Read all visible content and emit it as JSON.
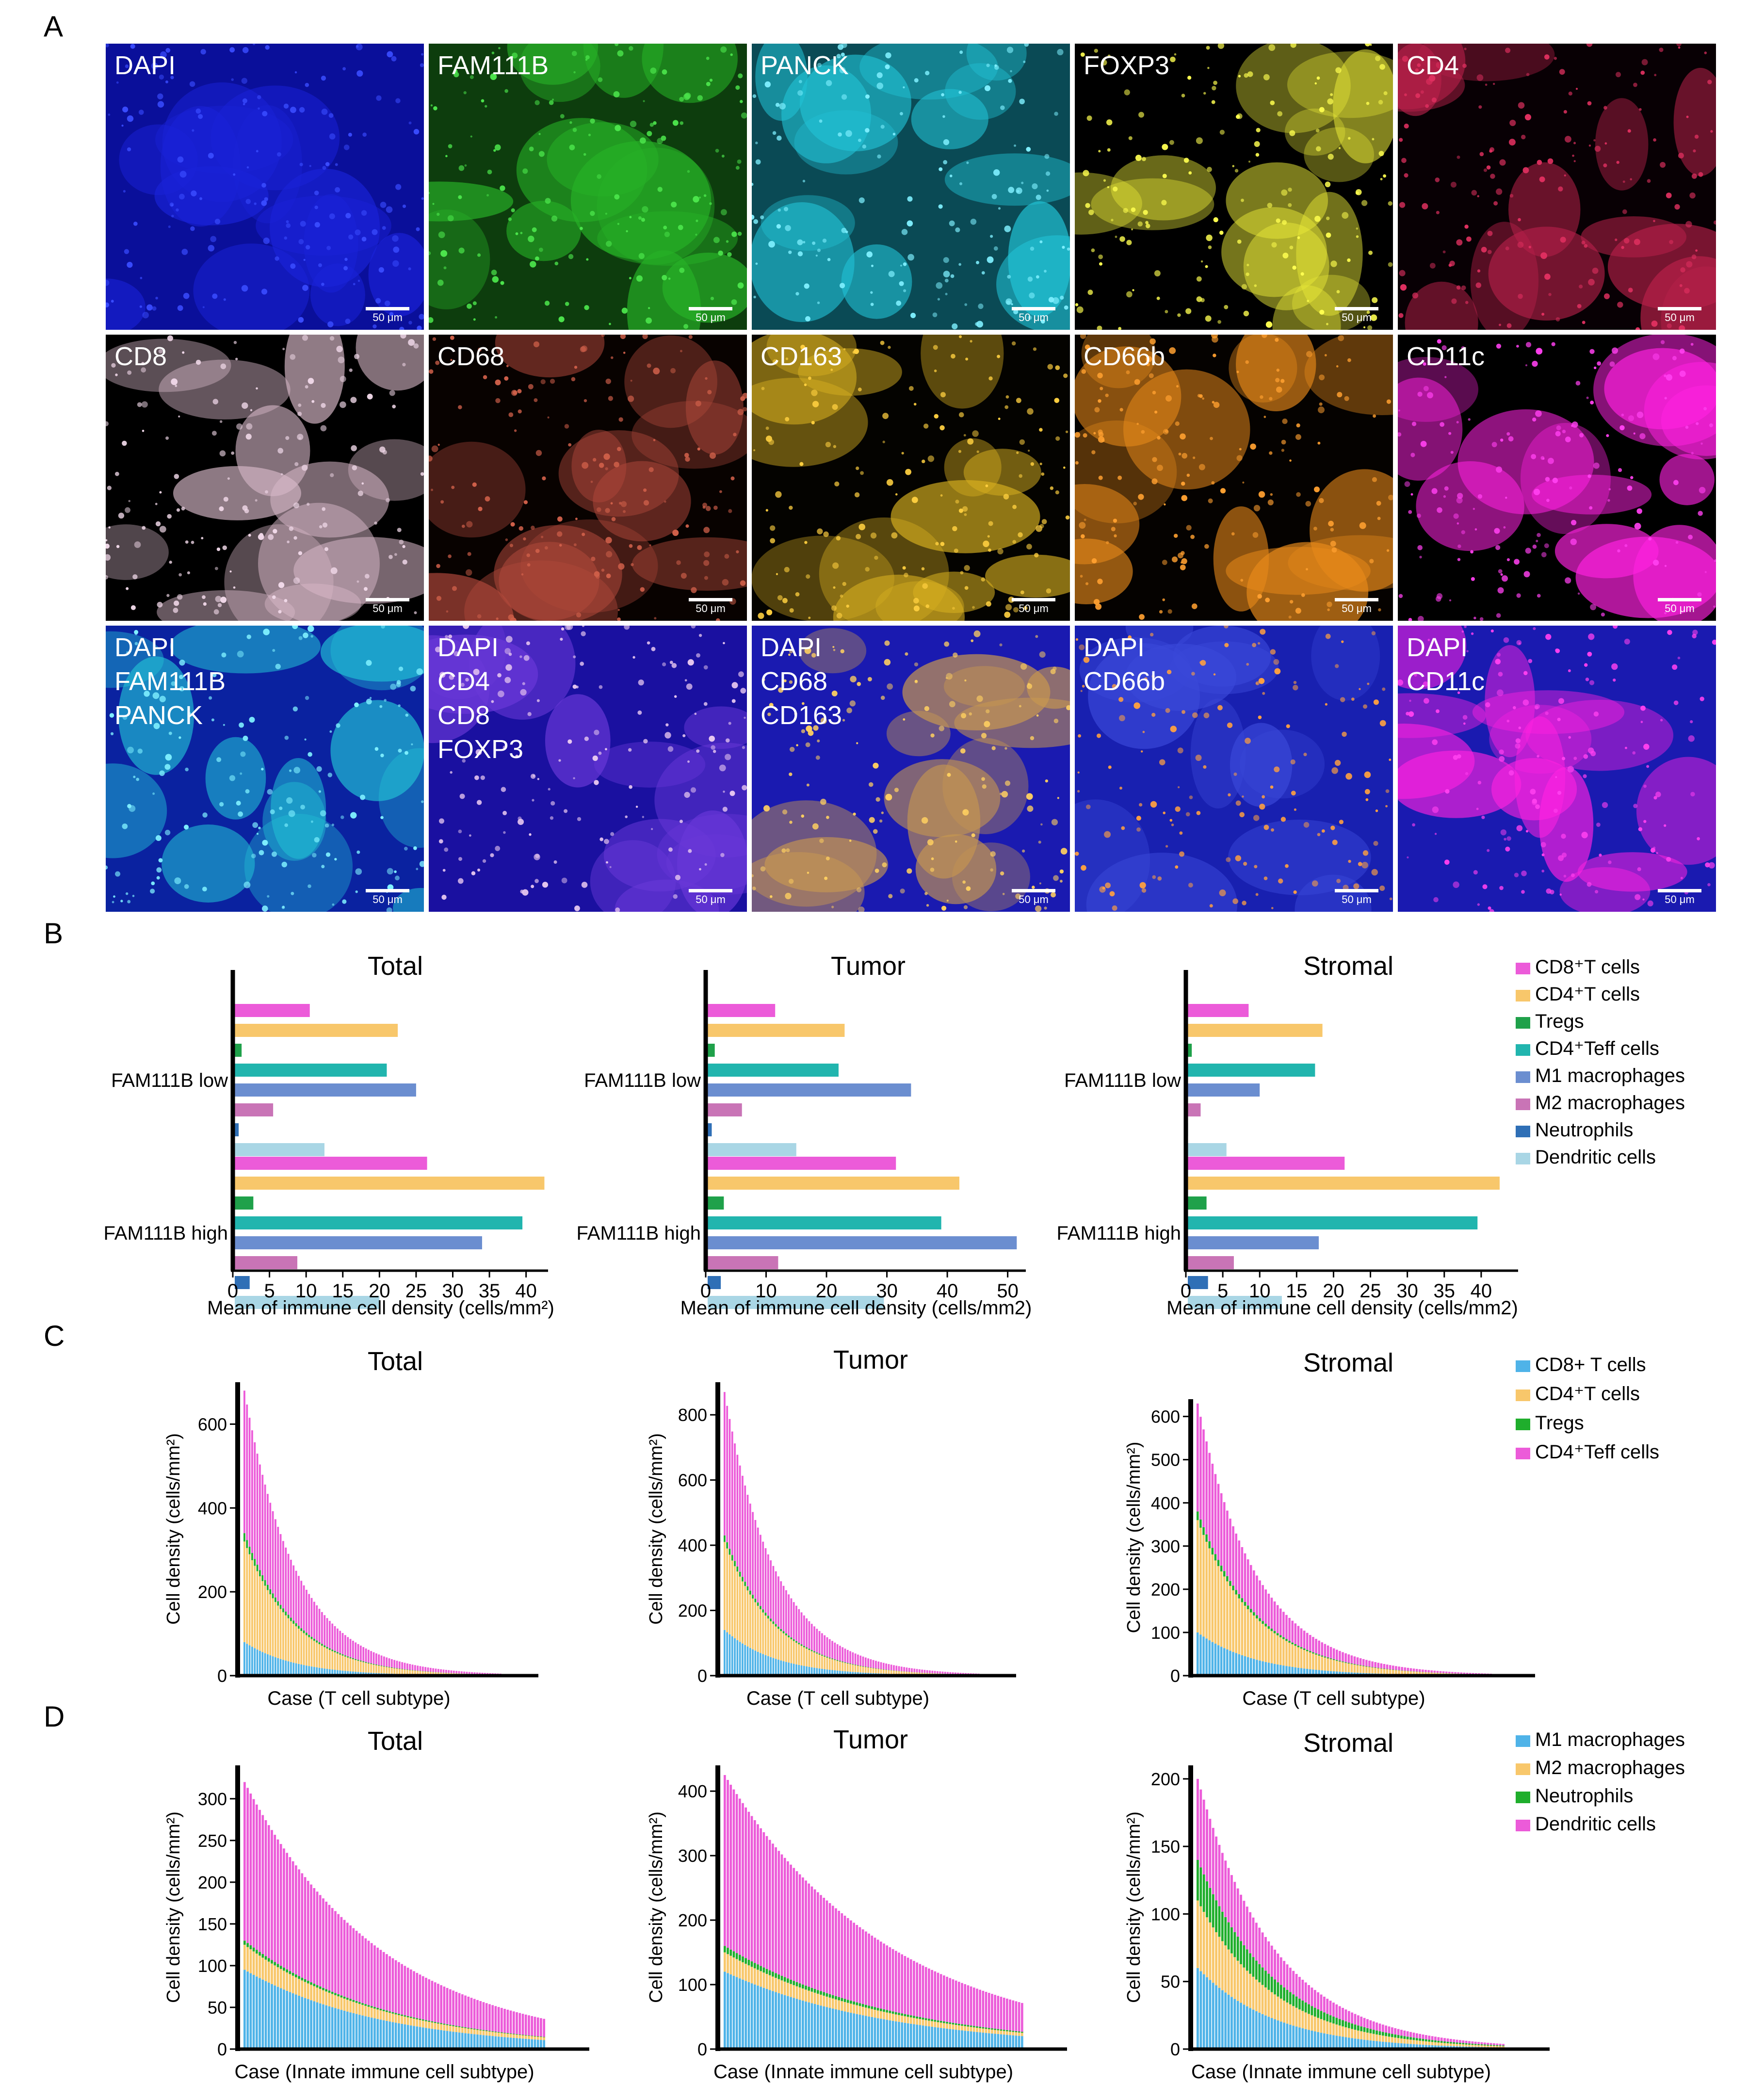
{
  "panel_labels": [
    "A",
    "B",
    "C",
    "D"
  ],
  "microscopy": {
    "scale_bar_label": "50 μm",
    "tiles": [
      {
        "label": "DAPI",
        "color": "#1a22d8",
        "dots": "#3a4cff",
        "bg": "#0a0f9a"
      },
      {
        "label": "FAM111B",
        "color": "#27b227",
        "dots": "#4ce64c",
        "bg": "#0d3d0d"
      },
      {
        "label": "PANCK",
        "color": "#22c3d6",
        "dots": "#7ff0ff",
        "bg": "#0a4a55"
      },
      {
        "label": "FOXP3",
        "color": "#e8e838",
        "dots": "#ffff50",
        "bg": "#000000"
      },
      {
        "label": "CD4",
        "color": "#b8204a",
        "dots": "#e03060",
        "bg": "#080004"
      },
      {
        "label": "CD8",
        "color": "#d8b8c8",
        "dots": "#f0d8e8",
        "bg": "#000000"
      },
      {
        "label": "CD68",
        "color": "#b0483a",
        "dots": "#d0604a",
        "bg": "#080200"
      },
      {
        "label": "CD163",
        "color": "#d8b020",
        "dots": "#ffd040",
        "bg": "#040300"
      },
      {
        "label": "CD66b",
        "color": "#e88a1a",
        "dots": "#ffa030",
        "bg": "#050200"
      },
      {
        "label": "CD11c",
        "color": "#ff22e0",
        "dots": "#ff40f0",
        "bg": "#000000"
      },
      {
        "label": "DAPI\nFAM111B\nPANCK",
        "color": "#22c3d6",
        "dots": "#7ff0ff",
        "bg": "#0a22a0"
      },
      {
        "label": "DAPI\nCD4\nCD8\nFOXP3",
        "color": "#6a38d8",
        "dots": "#e8c8f0",
        "bg": "#1a10a0"
      },
      {
        "label": "DAPI\nCD68\nCD163",
        "color": "#c89850",
        "dots": "#ffd060",
        "bg": "#1a1ab0"
      },
      {
        "label": "DAPI\nCD66b",
        "color": "#3a48d8",
        "dots": "#ffa040",
        "bg": "#1820b0"
      },
      {
        "label": "DAPI\nCD11c",
        "color": "#ff22e0",
        "dots": "#ff40f0",
        "bg": "#1a1ab0"
      }
    ]
  },
  "chart_data": [
    {
      "type": "bar",
      "panel": "B",
      "title": "Total",
      "orientation": "horizontal",
      "categories": [
        "FAM111B low",
        "FAM111B high"
      ],
      "xlabel": "Mean of immune cell density (cells/mm²)",
      "xlim": [
        0,
        43
      ],
      "xticks": [
        0,
        5,
        10,
        15,
        20,
        25,
        30,
        35,
        40
      ],
      "series": [
        {
          "name": "CD8⁺T cells",
          "color": "#ec5bd9",
          "values": [
            10.5,
            26.5
          ]
        },
        {
          "name": "CD4⁺T cells",
          "color": "#f8c76b",
          "values": [
            22.5,
            42.5
          ]
        },
        {
          "name": "Tregs",
          "color": "#1fa14a",
          "values": [
            1.2,
            2.8
          ]
        },
        {
          "name": "CD4⁺Teff cells",
          "color": "#21b5ae",
          "values": [
            21.0,
            39.5
          ]
        },
        {
          "name": "M1 macrophages",
          "color": "#6b8ed0",
          "values": [
            25.0,
            34.0
          ]
        },
        {
          "name": "M2 macrophages",
          "color": "#c974b6",
          "values": [
            5.5,
            8.8
          ]
        },
        {
          "name": "Neutrophils",
          "color": "#2f6fb6",
          "values": [
            0.8,
            2.3
          ]
        },
        {
          "name": "Dendritic cells",
          "color": "#a9d6e5",
          "values": [
            12.5,
            20.0
          ]
        }
      ]
    },
    {
      "type": "bar",
      "panel": "B",
      "title": "Tumor",
      "orientation": "horizontal",
      "categories": [
        "FAM111B low",
        "FAM111B high"
      ],
      "xlabel": "Mean of immune cell density (cells/mm2)",
      "xlim": [
        0,
        53
      ],
      "xticks": [
        0,
        10,
        20,
        30,
        40,
        50
      ],
      "series": [
        {
          "name": "CD8⁺T cells",
          "values": [
            11.5,
            31.5
          ]
        },
        {
          "name": "CD4⁺T cells",
          "values": [
            23.0,
            42.0
          ]
        },
        {
          "name": "Tregs",
          "values": [
            1.5,
            3.0
          ]
        },
        {
          "name": "CD4⁺Teff cells",
          "values": [
            22.0,
            39.0
          ]
        },
        {
          "name": "M1 macrophages",
          "values": [
            34.0,
            51.5
          ]
        },
        {
          "name": "M2 macrophages",
          "values": [
            6.0,
            12.0
          ]
        },
        {
          "name": "Neutrophils",
          "values": [
            1.0,
            2.5
          ]
        },
        {
          "name": "Dendritic cells",
          "values": [
            15.0,
            29.5
          ]
        }
      ]
    },
    {
      "type": "bar",
      "panel": "B",
      "title": "Stromal",
      "orientation": "horizontal",
      "categories": [
        "FAM111B low",
        "FAM111B high"
      ],
      "xlabel": "Mean of immune cell density (cells/mm2)",
      "xlim": [
        0,
        45
      ],
      "xticks": [
        0,
        5,
        10,
        15,
        20,
        25,
        30,
        35,
        40
      ],
      "series": [
        {
          "name": "CD8⁺T cells",
          "values": [
            8.5,
            21.5
          ]
        },
        {
          "name": "CD4⁺T cells",
          "values": [
            18.5,
            42.5
          ]
        },
        {
          "name": "Tregs",
          "values": [
            0.8,
            2.8
          ]
        },
        {
          "name": "CD4⁺Teff cells",
          "values": [
            17.5,
            39.5
          ]
        },
        {
          "name": "M1 macrophages",
          "values": [
            10.0,
            18.0
          ]
        },
        {
          "name": "M2 macrophages",
          "values": [
            2.0,
            6.5
          ]
        },
        {
          "name": "Neutrophils",
          "values": [
            0.3,
            3.0
          ]
        },
        {
          "name": "Dendritic cells",
          "values": [
            5.5,
            13.0
          ]
        }
      ]
    },
    {
      "type": "bar",
      "panel": "C",
      "title": "Total",
      "stacked": true,
      "n_cases": 100,
      "xlabel": "Case (T cell subtype)",
      "ylabel": "Cell density (cells/mm²)",
      "ylim": [
        0,
        700
      ],
      "yticks": [
        0,
        200,
        400,
        600
      ],
      "series": [
        {
          "name": "CD8+ T cells",
          "color": "#4fb3e8",
          "first_value": 80,
          "decay": 0.05
        },
        {
          "name": "CD4⁺T cells",
          "color": "#f8c76b",
          "first_value": 240,
          "decay": 0.05
        },
        {
          "name": "Tregs",
          "color": "#1fae2c",
          "first_value": 20,
          "decay": 0.05
        },
        {
          "name": "CD4⁺Teff cells",
          "color": "#ec5bd9",
          "first_value": 340,
          "decay": 0.05
        }
      ]
    },
    {
      "type": "bar",
      "panel": "C",
      "title": "Tumor",
      "stacked": true,
      "n_cases": 100,
      "xlabel": "Case (T cell subtype)",
      "ylabel": "Cell density (cells/mm²)",
      "ylim": [
        0,
        900
      ],
      "yticks": [
        0,
        200,
        400,
        600,
        800
      ],
      "series": [
        {
          "name": "CD8+ T cells",
          "first_value": 140,
          "decay": 0.05
        },
        {
          "name": "CD4⁺T cells",
          "first_value": 270,
          "decay": 0.05
        },
        {
          "name": "Tregs",
          "first_value": 20,
          "decay": 0.05
        },
        {
          "name": "CD4⁺Teff cells",
          "first_value": 440,
          "decay": 0.05
        }
      ]
    },
    {
      "type": "bar",
      "panel": "C",
      "title": "Stromal",
      "stacked": true,
      "n_cases": 100,
      "xlabel": "Case (T cell subtype)",
      "ylabel": "Cell density (cells/mm²)",
      "ylim": [
        0,
        640
      ],
      "yticks": [
        0,
        100,
        200,
        300,
        400,
        500,
        600
      ],
      "series": [
        {
          "name": "CD8+ T cells",
          "first_value": 100,
          "decay": 0.05
        },
        {
          "name": "CD4⁺T cells",
          "first_value": 260,
          "decay": 0.05
        },
        {
          "name": "Tregs",
          "first_value": 20,
          "decay": 0.05
        },
        {
          "name": "CD4⁺Teff cells",
          "first_value": 250,
          "decay": 0.05
        }
      ]
    },
    {
      "type": "bar",
      "panel": "D",
      "title": "Total",
      "stacked": true,
      "n_cases": 100,
      "xlabel": "Case (Innate immune cell subtype)",
      "ylabel": "Cell density (cells/mm²)",
      "ylim": [
        0,
        340
      ],
      "yticks": [
        0,
        50,
        100,
        150,
        200,
        250,
        300
      ],
      "series": [
        {
          "name": "M1 macrophages",
          "color": "#4fb3e8",
          "first_value": 95,
          "decay": 0.022
        },
        {
          "name": "M2 macrophages",
          "color": "#f8c76b",
          "first_value": 30,
          "decay": 0.022
        },
        {
          "name": "Neutrophils",
          "color": "#1fae2c",
          "first_value": 5,
          "decay": 0.022
        },
        {
          "name": "Dendritic cells",
          "color": "#ec5bd9",
          "first_value": 190,
          "decay": 0.022
        }
      ]
    },
    {
      "type": "bar",
      "panel": "D",
      "title": "Tumor",
      "stacked": true,
      "n_cases": 100,
      "xlabel": "Case (Innate immune cell subtype)",
      "ylabel": "Cell density (cells/mm²)",
      "ylim": [
        0,
        440
      ],
      "yticks": [
        0,
        100,
        200,
        300,
        400
      ],
      "series": [
        {
          "name": "M1 macrophages",
          "first_value": 120,
          "decay": 0.018
        },
        {
          "name": "M2 macrophages",
          "first_value": 30,
          "decay": 0.018
        },
        {
          "name": "Neutrophils",
          "first_value": 10,
          "decay": 0.018
        },
        {
          "name": "Dendritic cells",
          "first_value": 265,
          "decay": 0.018
        }
      ]
    },
    {
      "type": "bar",
      "panel": "D",
      "title": "Stromal",
      "stacked": true,
      "n_cases": 100,
      "xlabel": "Case (Innate immune cell subtype)",
      "ylabel": "Cell density (cells/mm²)",
      "ylim": [
        0,
        210
      ],
      "yticks": [
        0,
        50,
        100,
        150,
        200
      ],
      "series": [
        {
          "name": "M1 macrophages",
          "first_value": 60,
          "decay": 0.04
        },
        {
          "name": "M2 macrophages",
          "first_value": 50,
          "decay": 0.04
        },
        {
          "name": "Neutrophils",
          "first_value": 30,
          "decay": 0.04
        },
        {
          "name": "Dendritic cells",
          "first_value": 60,
          "decay": 0.04
        }
      ]
    }
  ],
  "legends": {
    "B": [
      "CD8⁺T cells",
      "CD4⁺T cells",
      "Tregs",
      "CD4⁺Teff cells",
      "M1 macrophages",
      "M2 macrophages",
      "Neutrophils",
      "Dendritic cells"
    ],
    "C": [
      "CD8+ T cells",
      "CD4⁺T cells",
      "Tregs",
      "CD4⁺Teff cells"
    ],
    "D": [
      "M1 macrophages",
      "M2 macrophages",
      "Neutrophils",
      "Dendritic cells"
    ]
  }
}
